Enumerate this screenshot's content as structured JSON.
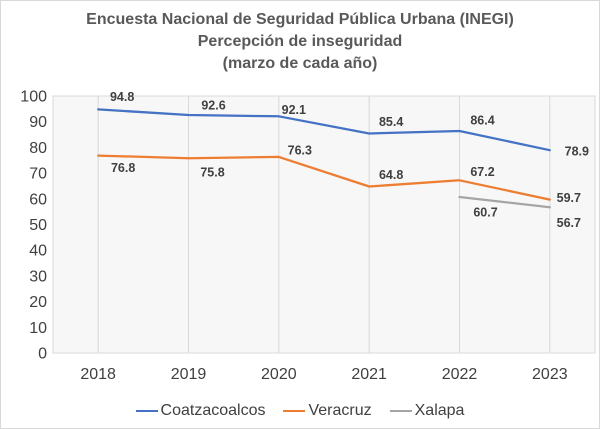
{
  "chart_data": {
    "type": "line",
    "title": "Encuesta Nacional de Seguridad Pública Urbana (INEGI)",
    "subtitle": "Percepción de inseguridad",
    "subtitle2": "(marzo de cada año)",
    "categories": [
      "2018",
      "2019",
      "2020",
      "2021",
      "2022",
      "2023"
    ],
    "series": [
      {
        "name": "Coatzacoalcos",
        "color": "#4472C4",
        "values": [
          94.8,
          92.6,
          92.1,
          85.4,
          86.4,
          78.9
        ]
      },
      {
        "name": "Veracruz",
        "color": "#ED7D31",
        "values": [
          76.8,
          75.8,
          76.3,
          64.8,
          67.2,
          59.7
        ]
      },
      {
        "name": "Xalapa",
        "color": "#A5A5A5",
        "values": [
          null,
          null,
          null,
          null,
          60.7,
          56.7
        ]
      }
    ],
    "ylim": [
      0,
      100
    ],
    "yticks": [
      0,
      10,
      20,
      30,
      40,
      50,
      60,
      70,
      80,
      90,
      100
    ],
    "grid": "vertical-only",
    "legend_position": "bottom",
    "colors": {
      "gridline": "#D9D9D9",
      "plot_fill": "#F7F7F7",
      "axis_text": "#404040",
      "title_text": "#595959"
    }
  }
}
